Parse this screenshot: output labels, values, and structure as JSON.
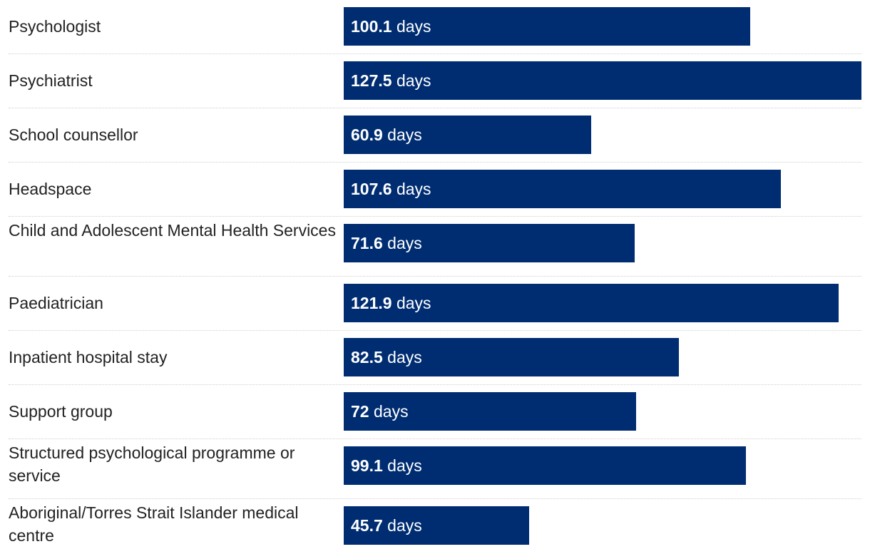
{
  "chart_data": {
    "type": "bar",
    "orientation": "horizontal",
    "unit_label": "days",
    "bar_color": "#002d72",
    "categories": [
      "Psychologist",
      "Psychiatrist",
      "School counsellor",
      "Headspace",
      "Child and Adolescent Mental Health Services",
      "Paediatrician",
      "Inpatient hospital stay",
      "Support group",
      "Structured psychological programme or service",
      "Aboriginal/Torres Strait Islander medical centre"
    ],
    "values": [
      100.1,
      127.5,
      60.9,
      107.6,
      71.6,
      121.9,
      82.5,
      72,
      99.1,
      45.7
    ],
    "value_labels": [
      "100.1",
      "127.5",
      "60.9",
      "107.6",
      "71.6",
      "121.9",
      "82.5",
      "72",
      "99.1",
      "45.7"
    ],
    "xlim": [
      0,
      127.5
    ]
  }
}
